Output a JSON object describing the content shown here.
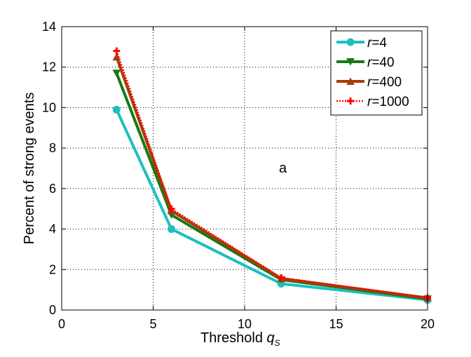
{
  "chart_data": {
    "type": "line",
    "title": "",
    "xlabel": "Threshold",
    "xlabel_symbol": "q",
    "xlabel_subscript": "S",
    "ylabel": "Percent of strong events",
    "xlim": [
      0,
      20
    ],
    "ylim": [
      0,
      14
    ],
    "xticks": [
      0,
      5,
      10,
      15,
      20
    ],
    "yticks": [
      0,
      2,
      4,
      6,
      8,
      10,
      12,
      14
    ],
    "grid": true,
    "legend_position": "top-right",
    "annotation": "a",
    "x": [
      3,
      6,
      12,
      20
    ],
    "series": [
      {
        "name": "r=4",
        "var": "r",
        "value": "=4",
        "values": [
          9.9,
          4.0,
          1.3,
          0.5
        ],
        "color": "#1fbfbf",
        "marker": "circle",
        "style": "solid"
      },
      {
        "name": "r=40",
        "var": "r",
        "value": "=40",
        "values": [
          11.7,
          4.7,
          1.5,
          0.55
        ],
        "color": "#157a15",
        "marker": "triangle-down",
        "style": "solid"
      },
      {
        "name": "r=400",
        "var": "r",
        "value": "=400",
        "values": [
          12.5,
          4.9,
          1.55,
          0.6
        ],
        "color": "#a83c0a",
        "marker": "triangle-up",
        "style": "solid"
      },
      {
        "name": "r=1000",
        "var": "r",
        "value": "=1000",
        "values": [
          12.8,
          5.0,
          1.6,
          0.6
        ],
        "color": "#ff0000",
        "marker": "plus",
        "style": "dotted"
      }
    ]
  }
}
